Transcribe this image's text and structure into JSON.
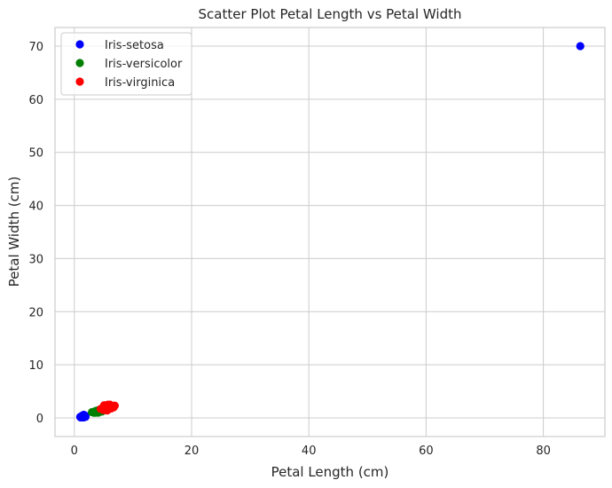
{
  "chart_data": {
    "type": "scatter",
    "title": "Scatter Plot Petal Length vs Petal Width",
    "xlabel": "Petal Length (cm)",
    "ylabel": "Petal Width (cm)",
    "xlim": [
      -3.3,
      90.5
    ],
    "ylim": [
      -3.5,
      73.5
    ],
    "xticks": [
      0,
      20,
      40,
      60,
      80
    ],
    "yticks": [
      0,
      10,
      20,
      30,
      40,
      50,
      60,
      70
    ],
    "xtick_labels": [
      "0",
      "20",
      "40",
      "60",
      "80"
    ],
    "ytick_labels": [
      "0",
      "10",
      "20",
      "30",
      "40",
      "50",
      "60",
      "70"
    ],
    "grid": true,
    "legend_position": "top-left",
    "series": [
      {
        "name": "Iris-setosa",
        "color": "#0000ff",
        "points": [
          [
            1.4,
            0.2
          ],
          [
            1.4,
            0.2
          ],
          [
            1.3,
            0.2
          ],
          [
            1.5,
            0.2
          ],
          [
            1.4,
            0.2
          ],
          [
            1.7,
            0.4
          ],
          [
            1.4,
            0.3
          ],
          [
            1.5,
            0.2
          ],
          [
            1.4,
            0.2
          ],
          [
            1.5,
            0.1
          ],
          [
            1.5,
            0.2
          ],
          [
            1.6,
            0.2
          ],
          [
            1.4,
            0.1
          ],
          [
            1.1,
            0.1
          ],
          [
            1.2,
            0.2
          ],
          [
            1.5,
            0.4
          ],
          [
            1.3,
            0.4
          ],
          [
            1.4,
            0.3
          ],
          [
            1.7,
            0.3
          ],
          [
            1.5,
            0.3
          ],
          [
            1.7,
            0.2
          ],
          [
            1.5,
            0.4
          ],
          [
            1.0,
            0.2
          ],
          [
            1.7,
            0.5
          ],
          [
            1.9,
            0.2
          ],
          [
            1.6,
            0.2
          ],
          [
            1.6,
            0.4
          ],
          [
            1.5,
            0.2
          ],
          [
            1.4,
            0.2
          ],
          [
            1.6,
            0.2
          ],
          [
            1.6,
            0.2
          ],
          [
            1.5,
            0.4
          ],
          [
            1.5,
            0.1
          ],
          [
            1.4,
            0.2
          ],
          [
            1.5,
            0.1
          ],
          [
            1.2,
            0.2
          ],
          [
            1.3,
            0.2
          ],
          [
            1.5,
            0.1
          ],
          [
            1.3,
            0.2
          ],
          [
            1.5,
            0.2
          ],
          [
            1.3,
            0.3
          ],
          [
            1.3,
            0.3
          ],
          [
            1.3,
            0.2
          ],
          [
            1.6,
            0.6
          ],
          [
            1.9,
            0.4
          ],
          [
            1.4,
            0.3
          ],
          [
            1.6,
            0.2
          ],
          [
            1.4,
            0.2
          ],
          [
            1.5,
            0.2
          ],
          [
            1.4,
            0.2
          ],
          [
            86.3,
            70.0
          ]
        ]
      },
      {
        "name": "Iris-versicolor",
        "color": "#008000",
        "points": [
          [
            4.7,
            1.4
          ],
          [
            4.5,
            1.5
          ],
          [
            4.9,
            1.5
          ],
          [
            4.0,
            1.3
          ],
          [
            4.6,
            1.5
          ],
          [
            4.5,
            1.3
          ],
          [
            4.7,
            1.6
          ],
          [
            3.3,
            1.0
          ],
          [
            4.6,
            1.3
          ],
          [
            3.9,
            1.4
          ],
          [
            3.5,
            1.0
          ],
          [
            4.2,
            1.5
          ],
          [
            4.0,
            1.0
          ],
          [
            4.7,
            1.4
          ],
          [
            3.6,
            1.3
          ],
          [
            4.4,
            1.4
          ],
          [
            4.5,
            1.5
          ],
          [
            4.1,
            1.0
          ],
          [
            4.5,
            1.5
          ],
          [
            3.9,
            1.1
          ],
          [
            4.8,
            1.8
          ],
          [
            4.0,
            1.3
          ],
          [
            4.9,
            1.5
          ],
          [
            4.7,
            1.2
          ],
          [
            4.3,
            1.3
          ],
          [
            4.4,
            1.4
          ],
          [
            4.8,
            1.4
          ],
          [
            5.0,
            1.7
          ],
          [
            4.5,
            1.5
          ],
          [
            3.5,
            1.0
          ],
          [
            3.8,
            1.1
          ],
          [
            3.7,
            1.0
          ],
          [
            3.9,
            1.2
          ],
          [
            5.1,
            1.6
          ],
          [
            4.5,
            1.5
          ],
          [
            4.5,
            1.6
          ],
          [
            4.7,
            1.5
          ],
          [
            4.4,
            1.3
          ],
          [
            4.1,
            1.3
          ],
          [
            4.0,
            1.3
          ],
          [
            4.4,
            1.2
          ],
          [
            4.6,
            1.4
          ],
          [
            4.0,
            1.2
          ],
          [
            3.3,
            1.0
          ],
          [
            4.2,
            1.3
          ],
          [
            4.2,
            1.2
          ],
          [
            4.2,
            1.3
          ],
          [
            4.3,
            1.3
          ],
          [
            3.0,
            1.1
          ],
          [
            4.1,
            1.3
          ]
        ]
      },
      {
        "name": "Iris-virginica",
        "color": "#ff0000",
        "points": [
          [
            6.0,
            2.5
          ],
          [
            5.1,
            1.9
          ],
          [
            5.9,
            2.1
          ],
          [
            5.6,
            1.8
          ],
          [
            5.8,
            2.2
          ],
          [
            6.6,
            2.1
          ],
          [
            4.5,
            1.7
          ],
          [
            6.3,
            1.8
          ],
          [
            5.8,
            1.8
          ],
          [
            6.1,
            2.5
          ],
          [
            5.1,
            2.0
          ],
          [
            5.3,
            1.9
          ],
          [
            5.5,
            2.1
          ],
          [
            5.0,
            2.0
          ],
          [
            5.1,
            2.4
          ],
          [
            5.3,
            2.3
          ],
          [
            5.5,
            1.8
          ],
          [
            6.7,
            2.2
          ],
          [
            6.9,
            2.3
          ],
          [
            5.0,
            1.5
          ],
          [
            5.7,
            2.3
          ],
          [
            4.9,
            2.0
          ],
          [
            6.7,
            2.0
          ],
          [
            4.9,
            1.8
          ],
          [
            5.7,
            2.1
          ],
          [
            6.0,
            1.8
          ],
          [
            4.8,
            1.8
          ],
          [
            4.9,
            1.8
          ],
          [
            5.6,
            2.1
          ],
          [
            5.8,
            1.6
          ],
          [
            6.1,
            1.9
          ],
          [
            6.4,
            2.0
          ],
          [
            5.6,
            2.2
          ],
          [
            5.1,
            1.5
          ],
          [
            5.6,
            1.4
          ],
          [
            6.1,
            2.3
          ],
          [
            5.6,
            2.4
          ],
          [
            5.5,
            1.8
          ],
          [
            4.8,
            1.8
          ],
          [
            5.4,
            2.1
          ],
          [
            5.6,
            2.4
          ],
          [
            5.1,
            2.3
          ],
          [
            5.1,
            1.9
          ],
          [
            5.9,
            2.3
          ],
          [
            5.7,
            2.5
          ],
          [
            5.2,
            2.3
          ],
          [
            5.0,
            1.9
          ],
          [
            5.2,
            2.0
          ],
          [
            5.4,
            2.3
          ],
          [
            5.1,
            1.8
          ]
        ]
      }
    ]
  }
}
